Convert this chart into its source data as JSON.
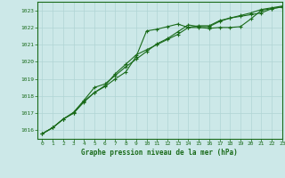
{
  "title": "Graphe pression niveau de la mer (hPa)",
  "background_color": "#cce8e8",
  "grid_color": "#b0d4d4",
  "line_color": "#1a6b1a",
  "marker_color": "#1a6b1a",
  "xlim": [
    -0.5,
    23
  ],
  "ylim": [
    1015.5,
    1023.5
  ],
  "yticks": [
    1016,
    1017,
    1018,
    1019,
    1020,
    1021,
    1022,
    1023
  ],
  "xticks": [
    0,
    1,
    2,
    3,
    4,
    5,
    6,
    7,
    8,
    9,
    10,
    11,
    12,
    13,
    14,
    15,
    16,
    17,
    18,
    19,
    20,
    21,
    22,
    23
  ],
  "series1_x": [
    0,
    1,
    2,
    3,
    4,
    5,
    6,
    7,
    8,
    9,
    10,
    11,
    12,
    13,
    14,
    15,
    16,
    17,
    18,
    19,
    20,
    21,
    22,
    23
  ],
  "series1_y": [
    1015.8,
    1016.15,
    1016.65,
    1017.0,
    1017.7,
    1018.2,
    1018.55,
    1019.0,
    1019.4,
    1020.3,
    1021.8,
    1021.9,
    1022.05,
    1022.2,
    1022.0,
    1022.0,
    1021.95,
    1022.0,
    1022.0,
    1022.05,
    1022.5,
    1023.0,
    1023.1,
    1023.2
  ],
  "series2_x": [
    0,
    1,
    2,
    3,
    4,
    5,
    6,
    7,
    8,
    9,
    10,
    11,
    12,
    13,
    14,
    15,
    16,
    17,
    18,
    19,
    20,
    21,
    22,
    23
  ],
  "series2_y": [
    1015.8,
    1016.15,
    1016.65,
    1017.0,
    1017.65,
    1018.2,
    1018.6,
    1019.3,
    1019.85,
    1020.4,
    1020.7,
    1021.0,
    1021.3,
    1021.6,
    1022.0,
    1022.1,
    1022.1,
    1022.4,
    1022.55,
    1022.65,
    1022.75,
    1022.85,
    1023.1,
    1023.2
  ],
  "series3_x": [
    0,
    1,
    2,
    3,
    4,
    5,
    6,
    7,
    8,
    9,
    10,
    11,
    12,
    13,
    14,
    15,
    16,
    17,
    18,
    19,
    20,
    21,
    22,
    23
  ],
  "series3_y": [
    1015.8,
    1016.15,
    1016.65,
    1017.05,
    1017.75,
    1018.5,
    1018.7,
    1019.2,
    1019.7,
    1020.15,
    1020.6,
    1021.05,
    1021.35,
    1021.75,
    1022.15,
    1022.05,
    1022.05,
    1022.35,
    1022.55,
    1022.7,
    1022.85,
    1023.05,
    1023.15,
    1023.25
  ]
}
